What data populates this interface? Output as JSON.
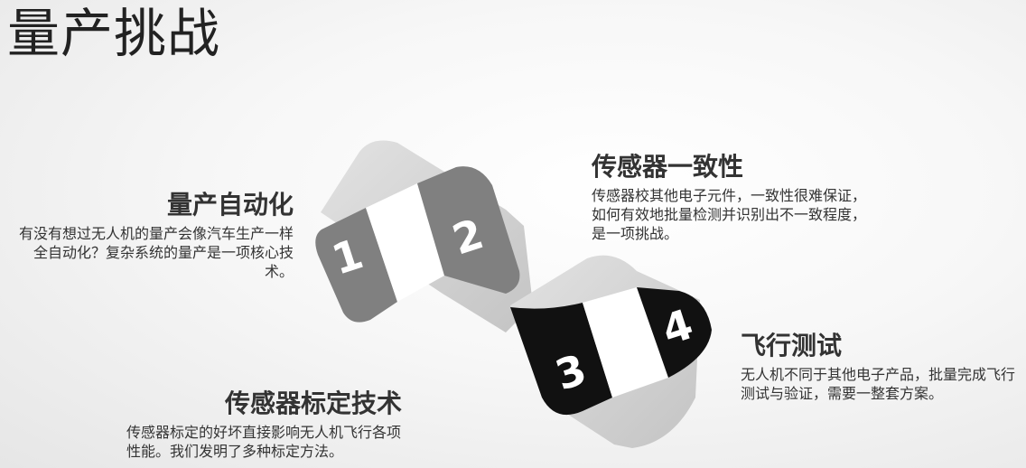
{
  "title": "量产挑战",
  "items": [
    {
      "number": "1",
      "heading": "量产自动化",
      "text": "有没有想过无人机的量产会像汽车生产一样全自动化？复杂系统的量产是一项核心技术。"
    },
    {
      "number": "2",
      "heading": "传感器一致性",
      "text": "传感器校其他电子元件，一致性很难保证，如何有效地批量检测并识别出不一致程度，是一项挑战。"
    },
    {
      "number": "3",
      "heading": "传感器标定技术",
      "text": "传感器标定的好坏直接影响无人机飞行各项性能。我们发明了多种标定方法。"
    },
    {
      "number": "4",
      "heading": "飞行测试",
      "text": "无人机不同于其他电子产品，批量完成飞行测试与验证，需要一整套方案。"
    }
  ],
  "colors": {
    "segment_gray": "#808080",
    "segment_black": "#111111",
    "ribbon_light": "#d6d6d6"
  }
}
